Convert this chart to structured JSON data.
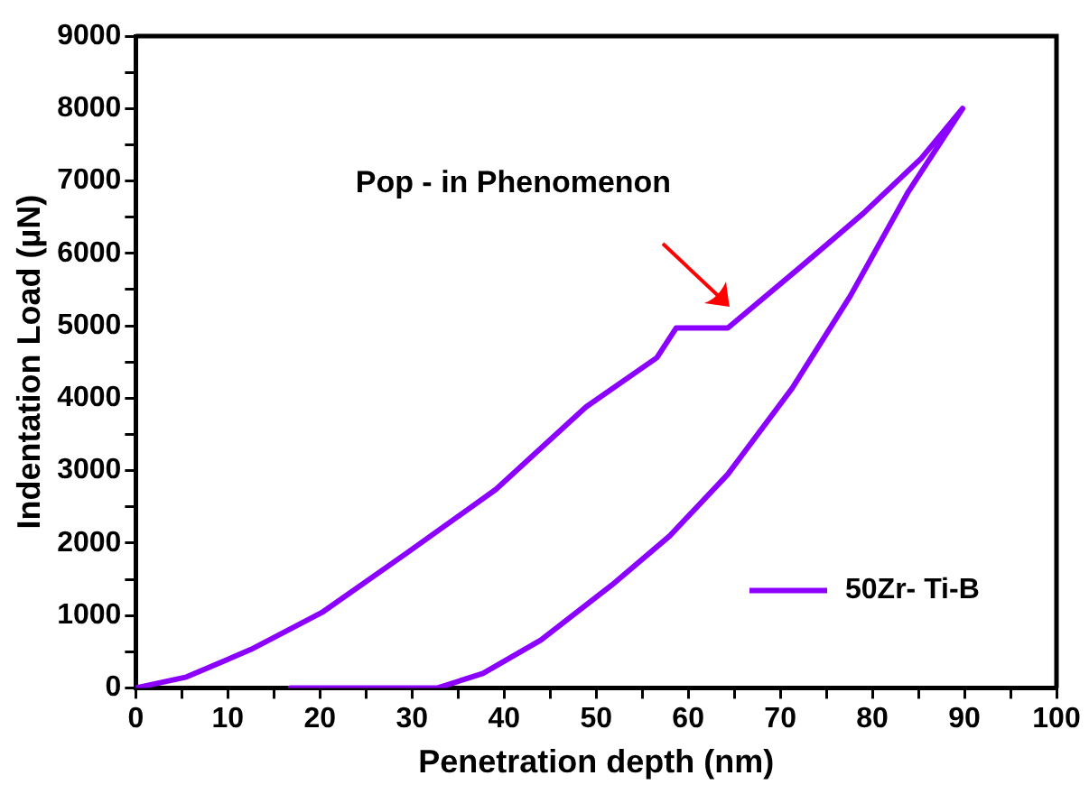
{
  "chart_data": {
    "type": "line",
    "xlabel": "Penetration depth (nm)",
    "ylabel": "Indentation Load (µN)",
    "annotations": [
      "Pop - in Phenomenon"
    ],
    "xlim": [
      0,
      100
    ],
    "ylim": [
      0,
      9000
    ],
    "xticks": [
      0,
      {
        "value": 5,
        "label": null
      },
      10,
      {
        "value": 15,
        "label": null
      },
      20,
      {
        "value": 25,
        "label": null
      },
      30,
      {
        "value": 35,
        "label": null
      },
      40,
      {
        "value": 45,
        "label": null
      },
      50,
      {
        "value": 55,
        "label": null
      },
      60,
      {
        "value": 65,
        "label": null
      },
      70,
      {
        "value": 75,
        "label": null
      },
      80,
      {
        "value": 85,
        "label": null
      },
      90,
      {
        "value": 95,
        "label": null
      },
      100
    ],
    "yticks": [
      0,
      {
        "value": 500,
        "label": null
      },
      1000,
      {
        "value": 1500,
        "label": null
      },
      2000,
      {
        "value": 2500,
        "label": null
      },
      3000,
      {
        "value": 3500,
        "label": null
      },
      4000,
      {
        "value": 4500,
        "label": null
      },
      5000,
      {
        "value": 5500,
        "label": null
      },
      6000,
      {
        "value": 6500,
        "label": null
      },
      7000,
      {
        "value": 7500,
        "label": null
      },
      8000,
      {
        "value": 8500,
        "label": null
      },
      9000
    ],
    "grid": false,
    "legend": "bottom right",
    "marker": "none",
    "line_style": "solid",
    "series": [
      {
        "name": "50Zr- Ti-B",
        "color": "#8b00ff",
        "x": [
          0,
          5.5,
          12.5,
          20.2,
          29.3,
          39.1,
          48.9,
          56.6,
          58.7,
          64.3,
          72,
          79,
          85.3,
          89.8,
          83.9,
          77.6,
          71.3,
          64.3,
          58,
          51.7,
          44,
          37.7,
          32.8,
          16.8
        ],
        "values": [
          0,
          150,
          530,
          1040,
          1850,
          2740,
          3880,
          4560,
          4970,
          4970,
          5790,
          6550,
          7310,
          8000,
          6850,
          5410,
          4140,
          2950,
          2100,
          1420,
          660,
          200,
          0,
          0
        ]
      }
    ]
  }
}
